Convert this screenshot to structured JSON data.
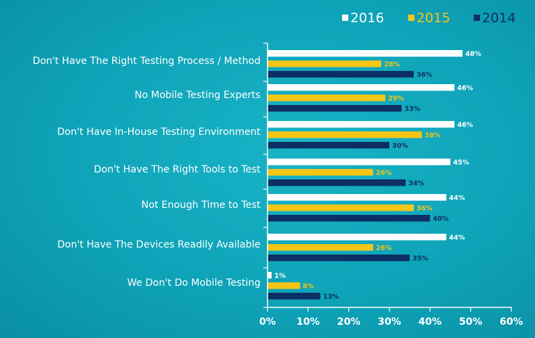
{
  "chart_data": {
    "type": "bar",
    "orientation": "horizontal",
    "title": "",
    "xlabel": "",
    "ylabel": "",
    "xlim": [
      0,
      60
    ],
    "ticks": [
      "0%",
      "10%",
      "20%",
      "30%",
      "40%",
      "50%",
      "60%"
    ],
    "tick_values": [
      0,
      10,
      20,
      30,
      40,
      50,
      60
    ],
    "legend_position": "top-right",
    "categories": [
      "Don't Have The Right Testing Process / Method",
      "No Mobile Testing Experts",
      "Don't Have In-House Testing Environment",
      "Don't Have The Right Tools to Test",
      "Not Enough Time to Test",
      "Don't Have The Devices Readily Available",
      "We Don't Do Mobile Testing"
    ],
    "series": [
      {
        "name": "2016",
        "color": "#ffffff",
        "label_color": "#ffffff",
        "values": [
          48,
          46,
          46,
          45,
          44,
          44,
          1
        ]
      },
      {
        "name": "2015",
        "color": "#f5c518",
        "label_color": "#f5c518",
        "values": [
          28,
          29,
          38,
          26,
          36,
          26,
          8
        ]
      },
      {
        "name": "2014",
        "color": "#0e2f63",
        "label_color": "#0e2f63",
        "values": [
          36,
          33,
          30,
          34,
          40,
          35,
          13
        ]
      }
    ]
  }
}
